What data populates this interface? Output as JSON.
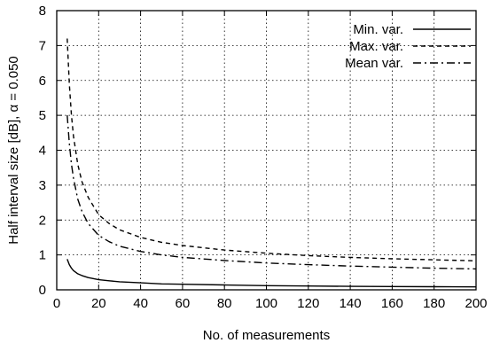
{
  "chart_data": {
    "type": "line",
    "xlabel": "No. of measurements",
    "ylabel": "Half interval size [dB], α = 0.050",
    "xlim": [
      0,
      200
    ],
    "ylim": [
      0,
      8
    ],
    "xticks": [
      0,
      20,
      40,
      60,
      80,
      100,
      120,
      140,
      160,
      180,
      200
    ],
    "yticks": [
      0,
      1,
      2,
      3,
      4,
      5,
      6,
      7,
      8
    ],
    "grid": true,
    "legend_position": "top-right",
    "series": [
      {
        "name": "Min. var.",
        "style": "solid",
        "color": "#000000",
        "x": [
          5,
          6,
          7,
          8,
          10,
          12,
          15,
          20,
          25,
          30,
          40,
          50,
          60,
          80,
          100,
          120,
          140,
          160,
          180,
          200
        ],
        "y": [
          0.88,
          0.72,
          0.62,
          0.55,
          0.46,
          0.41,
          0.35,
          0.29,
          0.26,
          0.23,
          0.2,
          0.17,
          0.16,
          0.14,
          0.12,
          0.11,
          0.1,
          0.095,
          0.09,
          0.085
        ]
      },
      {
        "name": "Max. var.",
        "style": "dashed",
        "color": "#000000",
        "x": [
          5,
          6,
          7,
          8,
          10,
          12,
          15,
          20,
          25,
          30,
          40,
          50,
          60,
          80,
          100,
          120,
          140,
          160,
          180,
          200
        ],
        "y": [
          7.2,
          5.9,
          5.0,
          4.4,
          3.6,
          3.1,
          2.65,
          2.15,
          1.9,
          1.72,
          1.5,
          1.36,
          1.27,
          1.14,
          1.05,
          0.98,
          0.93,
          0.89,
          0.86,
          0.83
        ]
      },
      {
        "name": "Mean var.",
        "style": "dashdot",
        "color": "#000000",
        "x": [
          5,
          6,
          7,
          8,
          10,
          12,
          15,
          20,
          25,
          30,
          40,
          50,
          60,
          80,
          100,
          120,
          140,
          160,
          180,
          200
        ],
        "y": [
          5.0,
          4.2,
          3.6,
          3.2,
          2.6,
          2.25,
          1.9,
          1.56,
          1.38,
          1.25,
          1.1,
          1.0,
          0.93,
          0.84,
          0.77,
          0.72,
          0.68,
          0.65,
          0.62,
          0.6
        ]
      }
    ]
  }
}
